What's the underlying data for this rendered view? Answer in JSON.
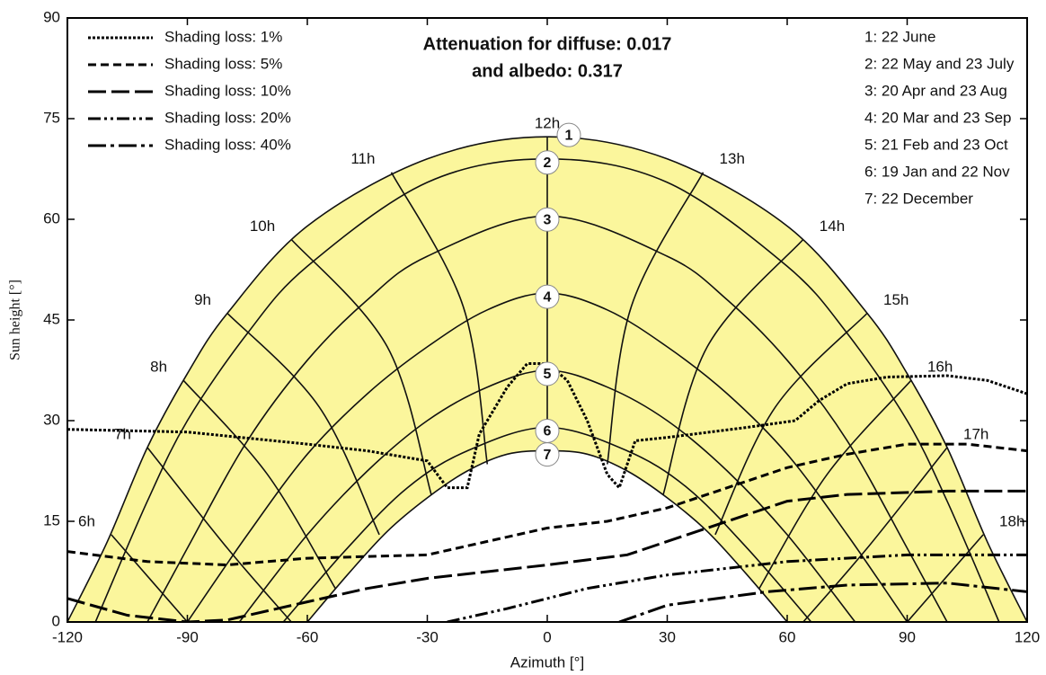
{
  "chart_data": {
    "type": "sunpath",
    "title": [
      "Attenuation for diffuse: 0.017",
      "and albedo: 0.317"
    ],
    "x_label": "Azimuth [°]",
    "y_label": "Sun height [°]",
    "xlim": [
      -120,
      120
    ],
    "xticks": [
      -120,
      -90,
      -60,
      -30,
      0,
      30,
      60,
      90,
      120
    ],
    "ylim": [
      0,
      90
    ],
    "yticks": [
      0,
      15,
      30,
      45,
      60,
      75,
      90
    ],
    "fill_color": "#fbf69c",
    "sun_paths": [
      {
        "name": "1: 22 June",
        "marker": "1",
        "x": [
          -120,
          -110,
          -100,
          -90,
          -80,
          -60,
          -30,
          0,
          30,
          60,
          80,
          90,
          100,
          110,
          120
        ],
        "values": [
          0,
          12,
          26,
          37,
          46,
          59,
          69,
          72.3,
          69,
          59,
          46,
          37,
          26,
          12,
          0
        ]
      },
      {
        "name": "2: 22 May and 23 July",
        "marker": "2",
        "x": [
          -113,
          -100,
          -90,
          -75,
          -60,
          -30,
          0,
          30,
          60,
          75,
          90,
          100,
          113
        ],
        "values": [
          0,
          18,
          30,
          43,
          53,
          65.5,
          69,
          65.5,
          53,
          43,
          30,
          18,
          0
        ]
      },
      {
        "name": "3: 20 Apr and 23 Aug",
        "marker": "3",
        "x": [
          -100,
          -90,
          -75,
          -60,
          -45,
          -30,
          0,
          30,
          45,
          60,
          75,
          90,
          100
        ],
        "values": [
          0,
          11,
          27,
          39,
          48,
          54.5,
          60.5,
          54.5,
          48,
          39,
          27,
          11,
          0
        ]
      },
      {
        "name": "4: 20 Mar and 23 Sep",
        "marker": "4",
        "x": [
          -90,
          -75,
          -60,
          -45,
          -30,
          -15,
          0,
          15,
          30,
          45,
          60,
          75,
          90
        ],
        "values": [
          0,
          13,
          25,
          34,
          41,
          46.5,
          49,
          46.5,
          41,
          34,
          25,
          13,
          0
        ]
      },
      {
        "name": "5: 21 Feb and 23 Oct",
        "marker": "5",
        "x": [
          -77,
          -60,
          -45,
          -30,
          -15,
          0,
          15,
          30,
          45,
          60,
          77
        ],
        "values": [
          0,
          13,
          22.5,
          30,
          35,
          37.5,
          35,
          30,
          22.5,
          13,
          0
        ]
      },
      {
        "name": "6: 19 Jan and 22 Nov",
        "marker": "6",
        "x": [
          -66,
          -50,
          -35,
          -20,
          0,
          20,
          35,
          50,
          66
        ],
        "values": [
          0,
          11,
          20,
          25.5,
          29,
          25.5,
          20,
          11,
          0
        ]
      },
      {
        "name": "7: 22 December",
        "marker": "7",
        "x": [
          -60,
          -50,
          -40,
          -30,
          -20,
          -10,
          0,
          10,
          20,
          30,
          40,
          50,
          60
        ],
        "values": [
          0,
          7,
          13.5,
          18.5,
          22.5,
          25,
          25.5,
          25,
          22.5,
          18.5,
          13.5,
          7,
          0
        ]
      }
    ],
    "hour_lines": [
      {
        "label": "6h",
        "x": [
          -109,
          -90
        ],
        "values": [
          13,
          0
        ]
      },
      {
        "label": "7h",
        "x": [
          -100,
          -80,
          -64
        ],
        "values": [
          26,
          11,
          0
        ]
      },
      {
        "label": "8h",
        "x": [
          -91,
          -70,
          -53
        ],
        "values": [
          36,
          22,
          5
        ]
      },
      {
        "label": "9h",
        "x": [
          -80,
          -57,
          -42
        ],
        "values": [
          46,
          32,
          13
        ]
      },
      {
        "label": "10h",
        "x": [
          -64,
          -40,
          -29
        ],
        "values": [
          57,
          41,
          19
        ]
      },
      {
        "label": "11h",
        "x": [
          -39,
          -21,
          -15
        ],
        "values": [
          67,
          47,
          23.5
        ]
      },
      {
        "label": "12h",
        "x": [
          0,
          0,
          0
        ],
        "values": [
          72.3,
          49,
          25.5
        ]
      },
      {
        "label": "13h",
        "x": [
          39,
          21,
          15
        ],
        "values": [
          67,
          47,
          23.5
        ]
      },
      {
        "label": "14h",
        "x": [
          64,
          40,
          29
        ],
        "values": [
          57,
          41,
          19
        ]
      },
      {
        "label": "15h",
        "x": [
          80,
          57,
          42
        ],
        "values": [
          46,
          32,
          13
        ]
      },
      {
        "label": "16h",
        "x": [
          91,
          70,
          53
        ],
        "values": [
          36,
          22,
          5
        ]
      },
      {
        "label": "17h",
        "x": [
          100,
          80,
          64
        ],
        "values": [
          26,
          11,
          0
        ]
      },
      {
        "label": "18h",
        "x": [
          109,
          90
        ],
        "values": [
          13,
          0
        ]
      }
    ],
    "shading": [
      {
        "name": "Shading loss: 1%",
        "style": "dotted",
        "x": [
          -120,
          -90,
          -60,
          -45,
          -30,
          -25,
          -20,
          -17,
          -10,
          -5,
          0,
          5,
          10,
          15,
          18,
          22,
          30,
          50,
          62,
          68,
          75,
          85,
          100,
          110,
          120
        ],
        "values": [
          28.7,
          28.3,
          26.5,
          25.5,
          24,
          20,
          20,
          28,
          35,
          38.5,
          38.5,
          36,
          30,
          22,
          20,
          27,
          27.5,
          29,
          30,
          33,
          35.5,
          36.5,
          36.7,
          36,
          34
        ]
      },
      {
        "name": "Shading loss: 5%",
        "style": "dashed",
        "x": [
          -120,
          -100,
          -80,
          -60,
          -30,
          -15,
          0,
          15,
          30,
          45,
          60,
          75,
          90,
          105,
          120
        ],
        "values": [
          10.5,
          9,
          8.5,
          9.5,
          10,
          12,
          14,
          15,
          17,
          20,
          23,
          25,
          26.5,
          26.5,
          25.5
        ]
      },
      {
        "name": "Shading loss: 10%",
        "style": "long-dash",
        "x": [
          -120,
          -105,
          -90,
          -80,
          -60,
          -45,
          -30,
          0,
          20,
          40,
          60,
          75,
          100,
          120
        ],
        "values": [
          3.5,
          1,
          0,
          0.3,
          3,
          5,
          6.5,
          8.5,
          10,
          14,
          18,
          19,
          19.5,
          19.5
        ]
      },
      {
        "name": "Shading loss: 20%",
        "style": "dash-dot-dot",
        "x": [
          -25,
          -10,
          10,
          30,
          60,
          90,
          120
        ],
        "values": [
          0,
          2,
          5,
          7,
          9,
          10,
          10
        ]
      },
      {
        "name": "Shading loss: 40%",
        "style": "dash-dot",
        "x": [
          18,
          30,
          55,
          75,
          100,
          120
        ],
        "values": [
          0,
          2.5,
          4.5,
          5.5,
          5.8,
          4.5
        ]
      }
    ]
  }
}
